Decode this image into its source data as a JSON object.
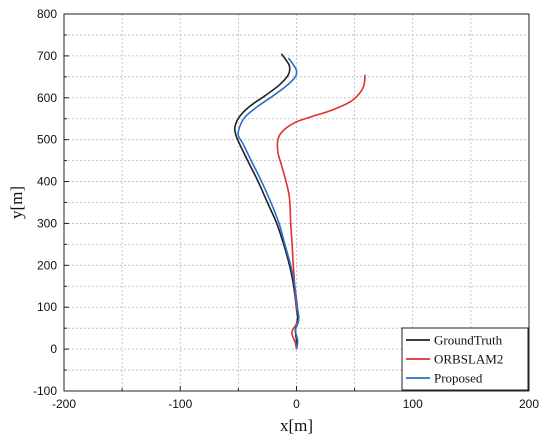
{
  "chart_data": {
    "type": "line",
    "title": "",
    "xlabel": "x[m]",
    "ylabel": "y[m]",
    "xlim": [
      -200,
      200
    ],
    "ylim": [
      -100,
      800
    ],
    "x_ticks": [
      -200,
      -100,
      0,
      100,
      200
    ],
    "y_ticks": [
      -100,
      0,
      100,
      200,
      300,
      400,
      500,
      600,
      700,
      800
    ],
    "grid": true,
    "legend_position": "bottom-right",
    "series": [
      {
        "name": "GroundTruth",
        "color": "#222222",
        "points": [
          [
            0,
            0
          ],
          [
            0,
            20
          ],
          [
            -1,
            45
          ],
          [
            0,
            60
          ],
          [
            1,
            75
          ],
          [
            0,
            95
          ],
          [
            -1,
            120
          ],
          [
            -3,
            160
          ],
          [
            -6,
            200
          ],
          [
            -11,
            250
          ],
          [
            -17,
            300
          ],
          [
            -25,
            350
          ],
          [
            -33,
            400
          ],
          [
            -42,
            450
          ],
          [
            -49,
            490
          ],
          [
            -52,
            510
          ],
          [
            -53,
            530
          ],
          [
            -49,
            555
          ],
          [
            -40,
            580
          ],
          [
            -27,
            605
          ],
          [
            -15,
            630
          ],
          [
            -7,
            655
          ],
          [
            -6,
            675
          ],
          [
            -9,
            690
          ],
          [
            -13,
            705
          ]
        ]
      },
      {
        "name": "ORBSLAM2",
        "color": "#e03030",
        "points": [
          [
            0,
            0
          ],
          [
            -1,
            15
          ],
          [
            -4,
            40
          ],
          [
            0,
            60
          ],
          [
            2,
            75
          ],
          [
            0,
            100
          ],
          [
            -1,
            130
          ],
          [
            -2,
            170
          ],
          [
            -3,
            210
          ],
          [
            -4,
            260
          ],
          [
            -5,
            300
          ],
          [
            -6,
            360
          ],
          [
            -9,
            400
          ],
          [
            -13,
            440
          ],
          [
            -16,
            470
          ],
          [
            -16,
            500
          ],
          [
            -12,
            520
          ],
          [
            -2,
            540
          ],
          [
            13,
            555
          ],
          [
            30,
            570
          ],
          [
            46,
            590
          ],
          [
            54,
            610
          ],
          [
            58,
            630
          ],
          [
            59,
            655
          ]
        ]
      },
      {
        "name": "Proposed",
        "color": "#2a6fc9",
        "points": [
          [
            0,
            0
          ],
          [
            1,
            20
          ],
          [
            -1,
            45
          ],
          [
            1,
            60
          ],
          [
            2,
            75
          ],
          [
            1,
            95
          ],
          [
            0,
            120
          ],
          [
            -2,
            160
          ],
          [
            -5,
            200
          ],
          [
            -10,
            250
          ],
          [
            -15,
            300
          ],
          [
            -22,
            350
          ],
          [
            -30,
            400
          ],
          [
            -39,
            450
          ],
          [
            -46,
            490
          ],
          [
            -50,
            510
          ],
          [
            -49,
            530
          ],
          [
            -44,
            555
          ],
          [
            -33,
            580
          ],
          [
            -20,
            605
          ],
          [
            -8,
            630
          ],
          [
            -1,
            650
          ],
          [
            0,
            665
          ],
          [
            -3,
            680
          ],
          [
            -7,
            695
          ]
        ]
      }
    ]
  }
}
